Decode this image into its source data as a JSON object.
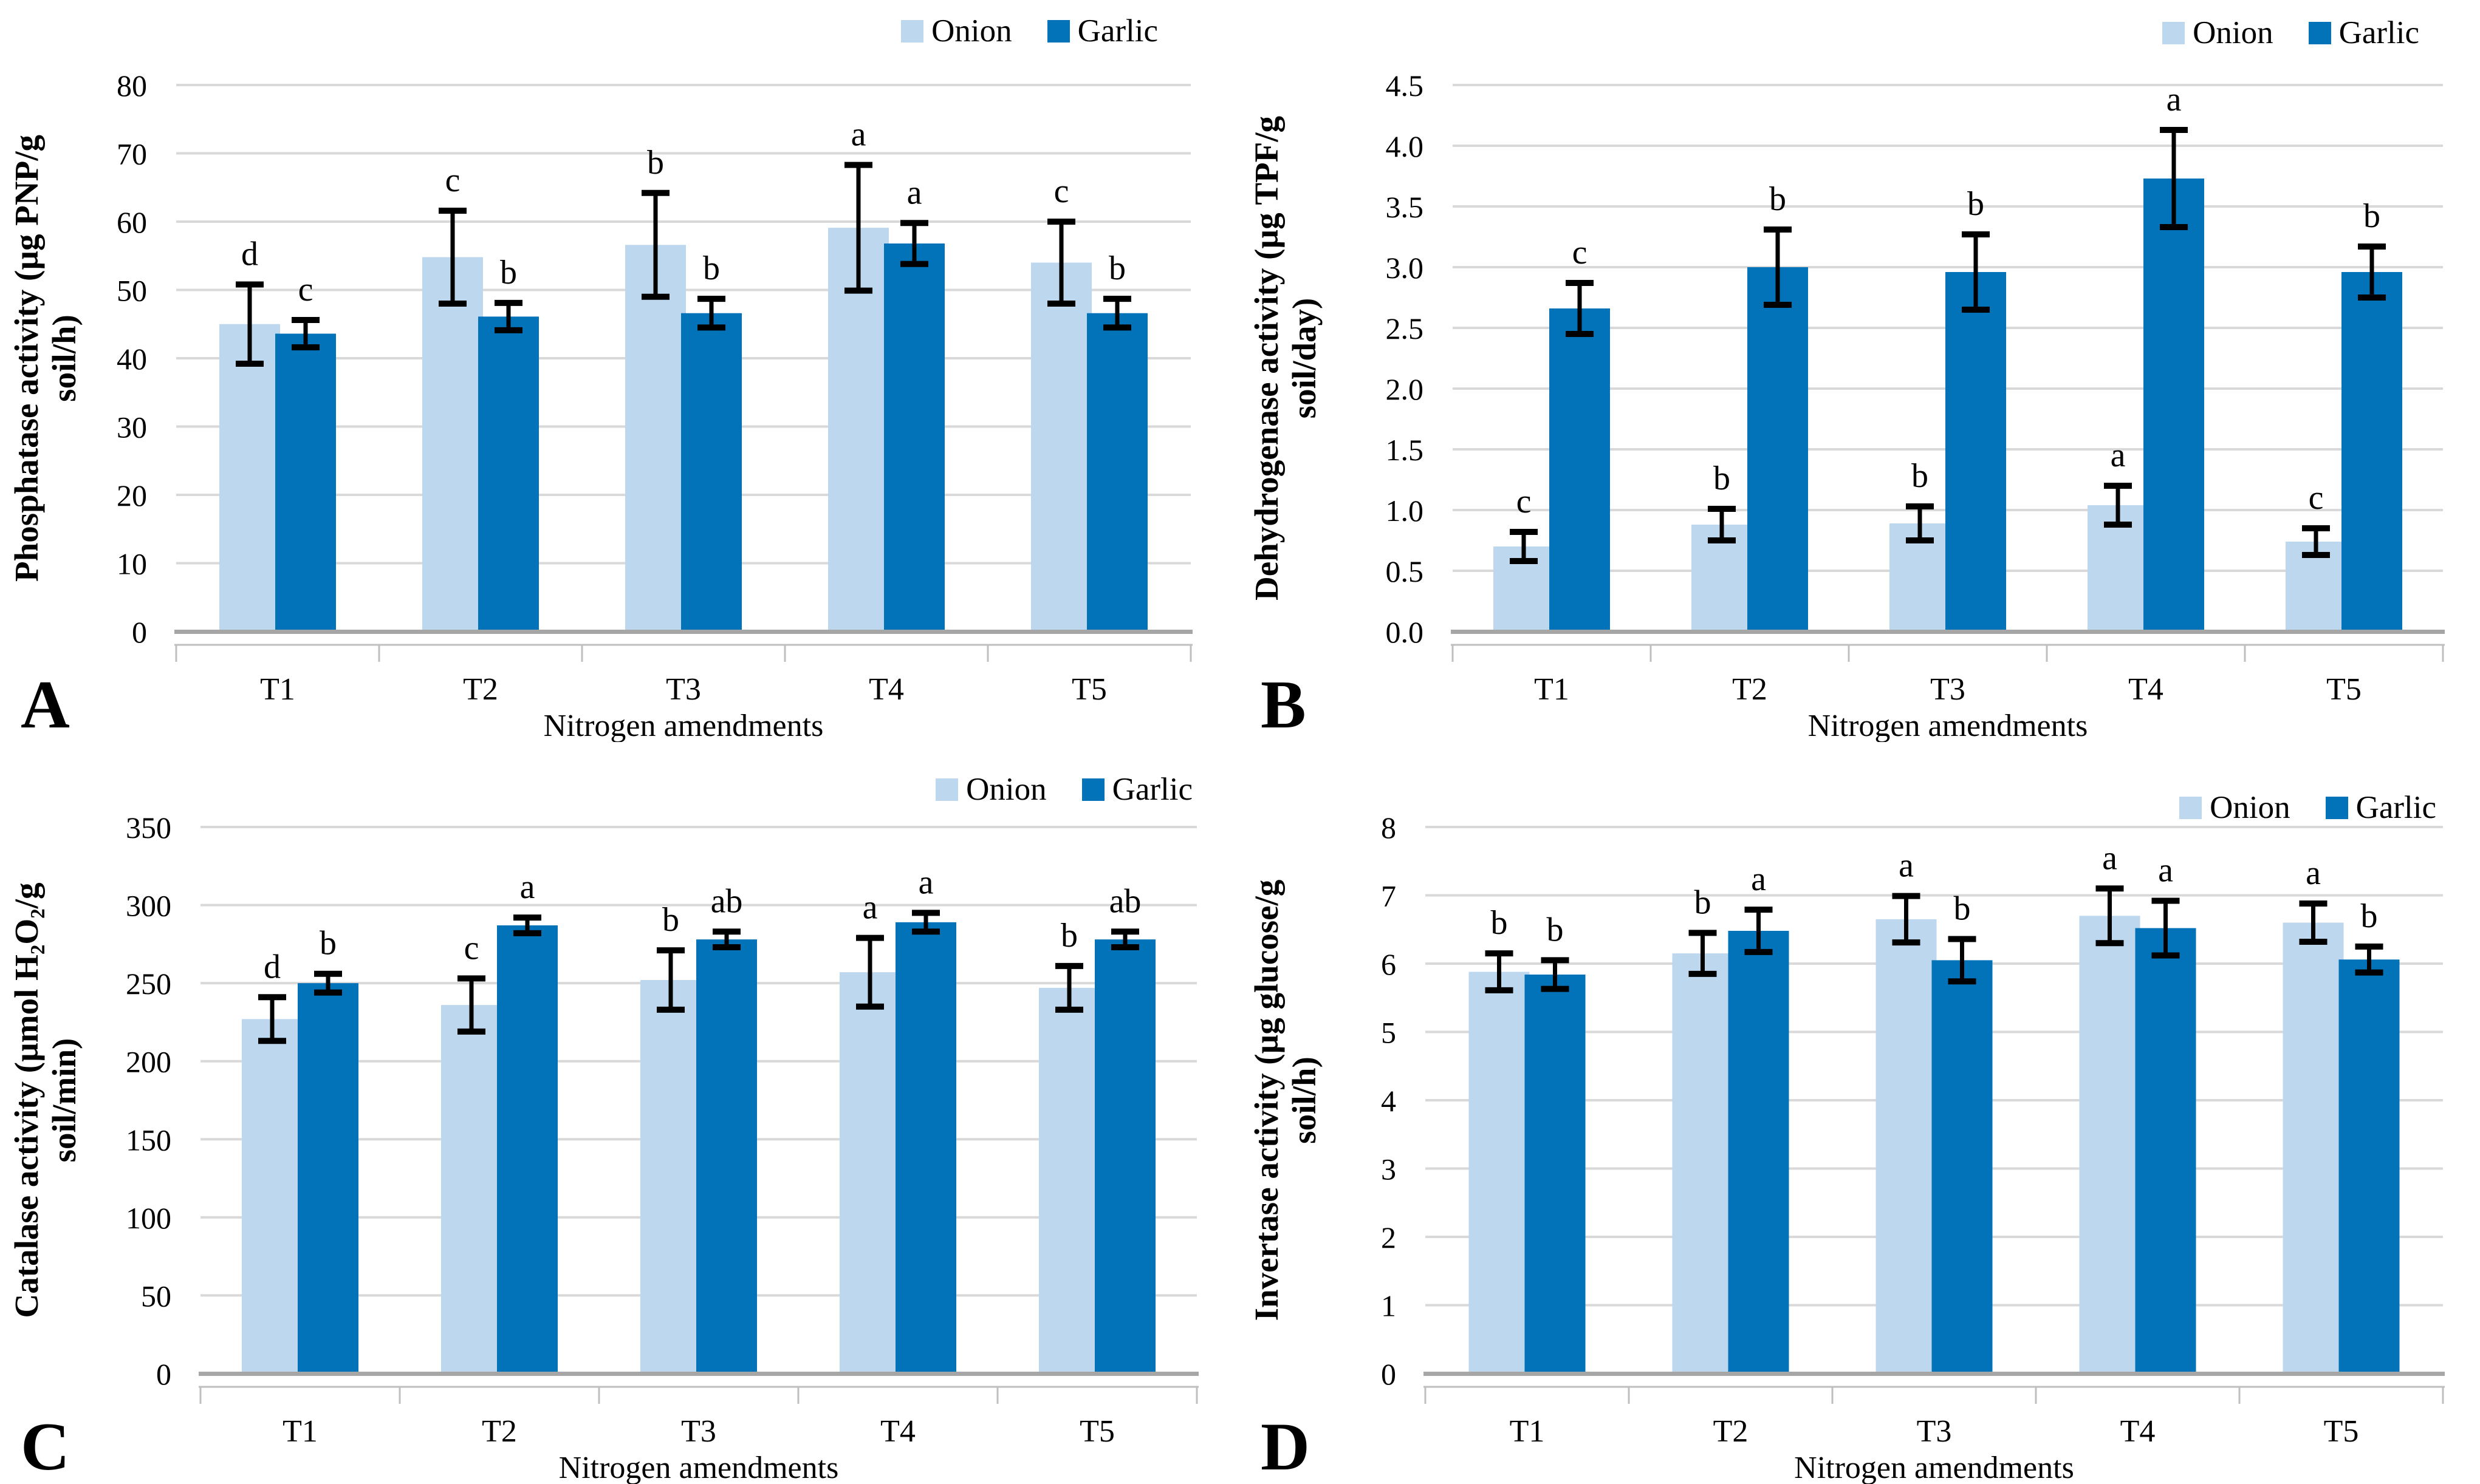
{
  "legend": {
    "items": [
      {
        "label": "Onion",
        "color": "#BDD7EE"
      },
      {
        "label": "Garlic",
        "color": "#0272B9"
      }
    ]
  },
  "shared": {
    "xlabel": "Nitrogen amendments",
    "categories": [
      "T1",
      "T2",
      "T3",
      "T4",
      "T5"
    ]
  },
  "styles": {
    "grid_color": "#D9D9D9",
    "baseline_color": "#A6A6A6",
    "axis_color": "#BFBFBF",
    "error_color": "#000000"
  },
  "chart_data": [
    {
      "type": "bar",
      "panel_label": "A",
      "ylabel": "Phosphatase activity (µg PNP/g soil/h)",
      "ylabel_lines": [
        "Phosphatase activity (µg PNP/g",
        "soil/h)"
      ],
      "xlabel": "Nitrogen amendments",
      "categories": [
        "T1",
        "T2",
        "T3",
        "T4",
        "T5"
      ],
      "ylim": [
        0,
        80
      ],
      "ytick_step": 10,
      "ytick_decimals": 0,
      "grid": true,
      "legend_position": "top-right",
      "series": [
        {
          "name": "Onion",
          "color": "#BDD7EE",
          "values": [
            45.0,
            54.8,
            56.6,
            59.1,
            54.0
          ],
          "errors": [
            5.8,
            6.8,
            7.6,
            9.2,
            6.0
          ],
          "letters": [
            "d",
            "c",
            "b",
            "a",
            "c"
          ]
        },
        {
          "name": "Garlic",
          "color": "#0272B9",
          "values": [
            43.6,
            46.1,
            46.6,
            56.8,
            46.6
          ],
          "errors": [
            2.0,
            2.0,
            2.1,
            3.0,
            2.1
          ],
          "letters": [
            "c",
            "b",
            "b",
            "a",
            "b"
          ]
        }
      ],
      "layout": {
        "x0": 290,
        "x1": 1960,
        "legend_top": 25,
        "legend_right": 135
      }
    },
    {
      "type": "bar",
      "panel_label": "B",
      "ylabel": "Dehydrogenase activity (µg TPF/g soil/day)",
      "ylabel_lines": [
        "Dehydrogenase activity (µg TPF/g",
        "soil/day)"
      ],
      "xlabel": "Nitrogen amendments",
      "categories": [
        "T1",
        "T2",
        "T3",
        "T4",
        "T5"
      ],
      "ylim": [
        0,
        4.5
      ],
      "ytick_step": 0.5,
      "ytick_decimals": 1,
      "grid": true,
      "legend_position": "top-right",
      "series": [
        {
          "name": "Onion",
          "color": "#BDD7EE",
          "values": [
            0.7,
            0.88,
            0.89,
            1.04,
            0.74
          ],
          "errors": [
            0.12,
            0.13,
            0.14,
            0.16,
            0.11
          ],
          "letters": [
            "c",
            "b",
            "b",
            "a",
            "c"
          ]
        },
        {
          "name": "Garlic",
          "color": "#0272B9",
          "values": [
            2.66,
            3.0,
            2.96,
            3.73,
            2.96
          ],
          "errors": [
            0.21,
            0.31,
            0.31,
            0.4,
            0.21
          ],
          "letters": [
            "c",
            "b",
            "b",
            "a",
            "b"
          ]
        }
      ],
      "layout": {
        "x0": 350,
        "x1": 1980,
        "legend_top": 28,
        "legend_right": 100
      }
    },
    {
      "type": "bar",
      "panel_label": "C",
      "ylabel": "Catalase activity (µmol H₂O₂/g soil/min)",
      "ylabel_lines": [
        "Catalase activity (µmol H₂O₂/g",
        "soil/min)"
      ],
      "xlabel": "Nitrogen amendments",
      "categories": [
        "T1",
        "T2",
        "T3",
        "T4",
        "T5"
      ],
      "ylim": [
        0,
        350
      ],
      "ytick_step": 50,
      "ytick_decimals": 0,
      "grid": true,
      "legend_position": "top-right",
      "series": [
        {
          "name": "Onion",
          "color": "#BDD7EE",
          "values": [
            227,
            236,
            252,
            257,
            247
          ],
          "errors": [
            14,
            17,
            19,
            22,
            14
          ],
          "letters": [
            "d",
            "c",
            "b",
            "a",
            "b"
          ]
        },
        {
          "name": "Garlic",
          "color": "#0272B9",
          "values": [
            250,
            287,
            278,
            289,
            278
          ],
          "errors": [
            6,
            5,
            5,
            6,
            5
          ],
          "letters": [
            "b",
            "a",
            "ab",
            "a",
            "ab"
          ]
        }
      ],
      "layout": {
        "x0": 330,
        "x1": 1970,
        "legend_top": 52,
        "legend_right": 78
      }
    },
    {
      "type": "bar",
      "panel_label": "D",
      "ylabel": "Invertase activity (µg glucose/g soil/h)",
      "ylabel_lines": [
        "Invertase activity (µg glucose/g",
        "soil/h)"
      ],
      "xlabel": "Nitrogen amendments",
      "categories": [
        "T1",
        "T2",
        "T3",
        "T4",
        "T5"
      ],
      "ylim": [
        0,
        8
      ],
      "ytick_step": 1,
      "ytick_decimals": 0,
      "grid": true,
      "legend_position": "top-right",
      "series": [
        {
          "name": "Onion",
          "color": "#BDD7EE",
          "values": [
            5.88,
            6.15,
            6.65,
            6.7,
            6.6
          ],
          "errors": [
            0.27,
            0.3,
            0.34,
            0.4,
            0.28
          ],
          "letters": [
            "b",
            "b",
            "a",
            "a",
            "a"
          ]
        },
        {
          "name": "Garlic",
          "color": "#0272B9",
          "values": [
            5.84,
            6.48,
            6.05,
            6.52,
            6.06
          ],
          "errors": [
            0.21,
            0.31,
            0.31,
            0.4,
            0.19
          ],
          "letters": [
            "b",
            "a",
            "b",
            "a",
            "b"
          ]
        }
      ],
      "layout": {
        "x0": 305,
        "x1": 1980,
        "legend_top": 82,
        "legend_right": 72
      }
    }
  ]
}
